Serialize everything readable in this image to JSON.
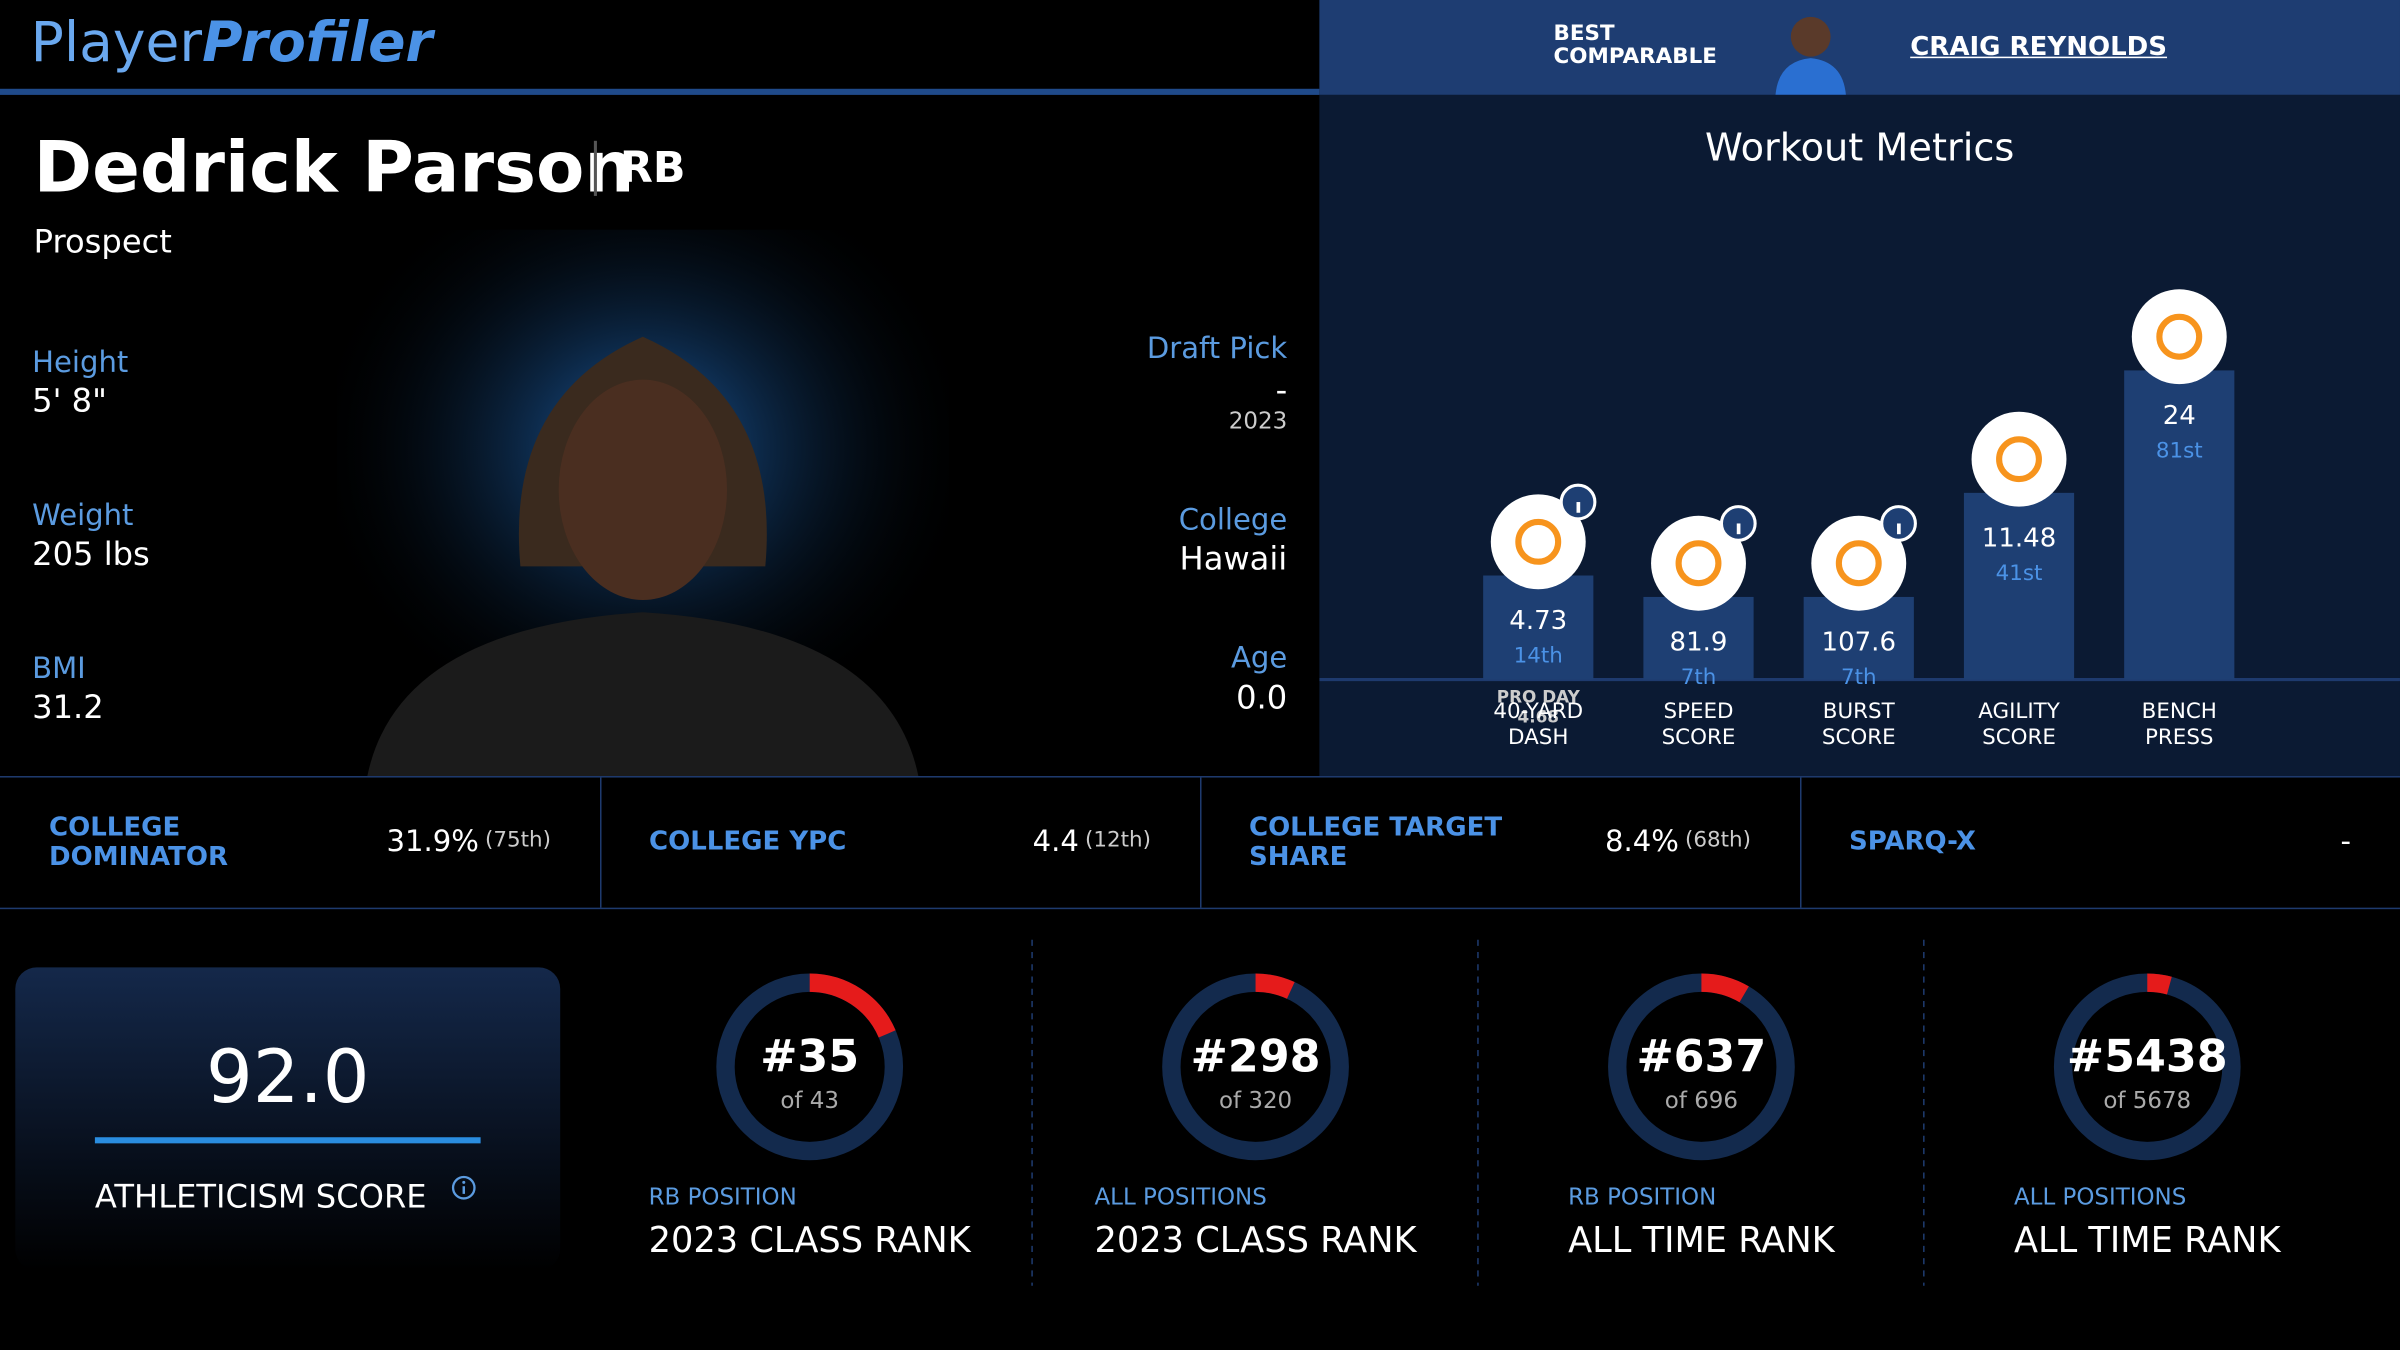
{
  "header": {
    "logo_part1": "Player",
    "logo_part2": "Profiler",
    "comparable_label": [
      "BEST",
      "COMPARABLE"
    ],
    "comparable_name": "CRAIG REYNOLDS"
  },
  "player": {
    "name": "Dedrick Parson",
    "position": "RB",
    "status": "Prospect",
    "left_fields": [
      {
        "label": "Height",
        "value": "5' 8\""
      },
      {
        "label": "Weight",
        "value": "205 lbs"
      },
      {
        "label": "BMI",
        "value": "31.2"
      }
    ],
    "draft_label": "Draft Pick",
    "draft_value": "-",
    "draft_year": "2023",
    "college_label": "College",
    "college_value": "Hawaii",
    "age_label": "Age",
    "age_value": "0.0"
  },
  "workout": {
    "title": "Workout Metrics",
    "metrics": [
      {
        "label": [
          "40-YARD",
          "DASH"
        ],
        "value": 4.73,
        "percentile": {
          "value": 14,
          "label": "14th"
        },
        "note": [
          "PRO DAY",
          "4.68"
        ],
        "info": true
      },
      {
        "label": [
          "SPEED",
          "SCORE"
        ],
        "value": 81.9,
        "percentile": {
          "value": 7,
          "label": "7th"
        },
        "info": true
      },
      {
        "label": [
          "BURST",
          "SCORE"
        ],
        "value": 107.6,
        "percentile": {
          "value": 7,
          "label": "7th"
        },
        "info": true
      },
      {
        "label": [
          "AGILITY",
          "SCORE"
        ],
        "value": 11.48,
        "percentile": {
          "value": 41,
          "label": "41st"
        },
        "info": false
      },
      {
        "label": [
          "BENCH",
          "PRESS"
        ],
        "value": 24,
        "percentile": {
          "value": 81,
          "label": "81st"
        },
        "info": false
      }
    ]
  },
  "stats": [
    {
      "label": "COLLEGE DOMINATOR",
      "value": "31.9%",
      "rank": "(75th)"
    },
    {
      "label": "COLLEGE YPC",
      "value": "4.4",
      "rank": "(12th)"
    },
    {
      "label": "COLLEGE TARGET SHARE",
      "value": "8.4%",
      "rank": "(68th)"
    },
    {
      "label": "SPARQ-X",
      "value": "-"
    }
  ],
  "score": {
    "value": "92.0",
    "label": "ATHLETICISM SCORE"
  },
  "ranks": [
    {
      "rank": {
        "value": 35,
        "label": "#35"
      },
      "total": {
        "value": 43,
        "label": "of 43"
      },
      "scope": "RB POSITION",
      "title": "2023 CLASS RANK"
    },
    {
      "rank": {
        "value": 298,
        "label": "#298"
      },
      "total": {
        "value": 320,
        "label": "of 320"
      },
      "scope": "ALL POSITIONS",
      "title": "2023 CLASS RANK"
    },
    {
      "rank": {
        "value": 637,
        "label": "#637"
      },
      "total": {
        "value": 696,
        "label": "of 696"
      },
      "scope": "RB POSITION",
      "title": "ALL TIME RANK"
    },
    {
      "rank": {
        "value": 5438,
        "label": "#5438"
      },
      "total": {
        "value": 5678,
        "label": "of 5678"
      },
      "scope": "ALL POSITIONS",
      "title": "ALL TIME RANK"
    }
  ]
}
